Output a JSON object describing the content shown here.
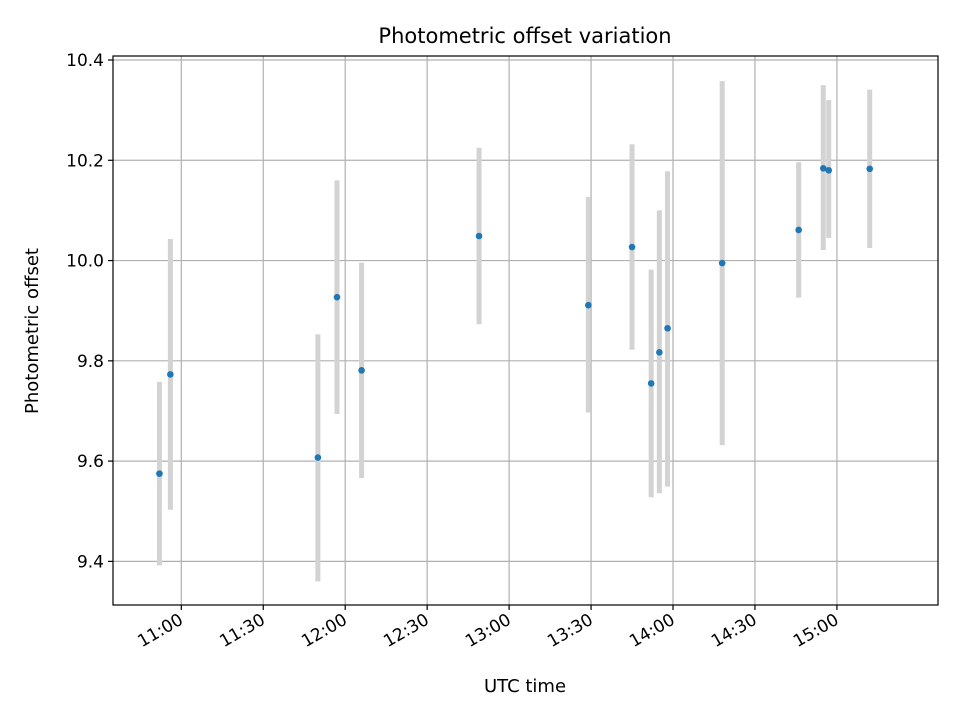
{
  "chart_data": {
    "type": "scatter",
    "title": "Photometric offset variation",
    "xlabel": "UTC time",
    "ylabel": "Photometric offset",
    "xlim": [
      "10:35",
      "15:37"
    ],
    "ylim": [
      9.313,
      10.408
    ],
    "x_ticks": [
      "11:00",
      "11:30",
      "12:00",
      "12:30",
      "13:00",
      "13:30",
      "14:00",
      "14:30",
      "15:00"
    ],
    "y_ticks": [
      9.4,
      9.6,
      9.8,
      10.0,
      10.2,
      10.4
    ],
    "y_tick_labels": [
      "9.4",
      "9.6",
      "9.8",
      "10.0",
      "10.2",
      "10.4"
    ],
    "grid": true,
    "colors": {
      "points": "#1f77b4",
      "error_bars": "#d3d3d3",
      "grid": "#b0b0b0"
    },
    "points": [
      {
        "t": "10:52",
        "y": 9.575,
        "err_low": 9.392,
        "err_high": 9.758
      },
      {
        "t": "10:56",
        "y": 9.773,
        "err_low": 9.503,
        "err_high": 10.043
      },
      {
        "t": "11:50",
        "y": 9.607,
        "err_low": 9.36,
        "err_high": 9.853
      },
      {
        "t": "11:57",
        "y": 9.927,
        "err_low": 9.694,
        "err_high": 10.16
      },
      {
        "t": "12:06",
        "y": 9.781,
        "err_low": 9.566,
        "err_high": 9.996
      },
      {
        "t": "12:49",
        "y": 10.049,
        "err_low": 9.873,
        "err_high": 10.225
      },
      {
        "t": "13:29",
        "y": 9.911,
        "err_low": 9.697,
        "err_high": 10.127
      },
      {
        "t": "13:45",
        "y": 10.027,
        "err_low": 9.822,
        "err_high": 10.232
      },
      {
        "t": "13:52",
        "y": 9.755,
        "err_low": 9.528,
        "err_high": 9.982
      },
      {
        "t": "13:55",
        "y": 9.817,
        "err_low": 9.536,
        "err_high": 10.1
      },
      {
        "t": "13:58",
        "y": 9.865,
        "err_low": 9.549,
        "err_high": 10.178
      },
      {
        "t": "14:18",
        "y": 9.995,
        "err_low": 9.632,
        "err_high": 10.358
      },
      {
        "t": "14:46",
        "y": 10.061,
        "err_low": 9.926,
        "err_high": 10.196
      },
      {
        "t": "14:55",
        "y": 10.184,
        "err_low": 10.021,
        "err_high": 10.35
      },
      {
        "t": "14:57",
        "y": 10.18,
        "err_low": 10.045,
        "err_high": 10.32
      },
      {
        "t": "15:12",
        "y": 10.183,
        "err_low": 10.025,
        "err_high": 10.341
      }
    ]
  }
}
